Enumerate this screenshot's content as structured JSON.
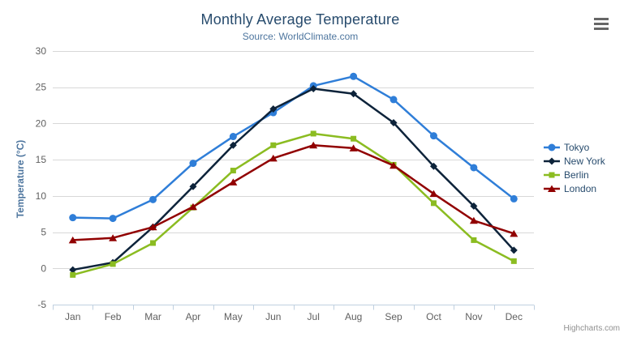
{
  "credits": {
    "label": "Highcharts.com"
  },
  "context_menu": {
    "icon": "hamburger-icon"
  },
  "colors": {
    "title": "#274b6d",
    "subtitle": "#4d759e",
    "axis_title": "#4d759e",
    "tick_label": "#606060",
    "gridline": "#d8d8d8",
    "axis_line": "#c0d0e0",
    "credits": "#909090",
    "menu_icon": "#666666"
  },
  "chart_data": {
    "type": "line",
    "title": "Monthly Average Temperature",
    "subtitle": "Source: WorldClimate.com",
    "categories": [
      "Jan",
      "Feb",
      "Mar",
      "Apr",
      "May",
      "Jun",
      "Jul",
      "Aug",
      "Sep",
      "Oct",
      "Nov",
      "Dec"
    ],
    "xlabel": "",
    "ylabel": "Temperature (°C)",
    "ylim": [
      -5,
      30
    ],
    "ytick_step": 5,
    "yticks": [
      -5,
      0,
      5,
      10,
      15,
      20,
      25,
      30
    ],
    "grid": true,
    "legend_position": "right",
    "series": [
      {
        "name": "Tokyo",
        "color": "#2f7ed8",
        "marker": "circle",
        "values": [
          7.0,
          6.9,
          9.5,
          14.5,
          18.2,
          21.5,
          25.2,
          26.5,
          23.3,
          18.3,
          13.9,
          9.6
        ]
      },
      {
        "name": "New York",
        "color": "#0d233a",
        "marker": "diamond",
        "values": [
          -0.2,
          0.8,
          5.7,
          11.3,
          17.0,
          22.0,
          24.8,
          24.1,
          20.1,
          14.1,
          8.6,
          2.5
        ]
      },
      {
        "name": "Berlin",
        "color": "#8bbc21",
        "marker": "square",
        "values": [
          -0.9,
          0.6,
          3.5,
          8.4,
          13.5,
          17.0,
          18.6,
          17.9,
          14.3,
          9.0,
          3.9,
          1.0
        ]
      },
      {
        "name": "London",
        "color": "#910000",
        "marker": "triangle",
        "values": [
          3.9,
          4.2,
          5.7,
          8.5,
          11.9,
          15.2,
          17.0,
          16.6,
          14.2,
          10.3,
          6.6,
          4.8
        ]
      }
    ]
  }
}
